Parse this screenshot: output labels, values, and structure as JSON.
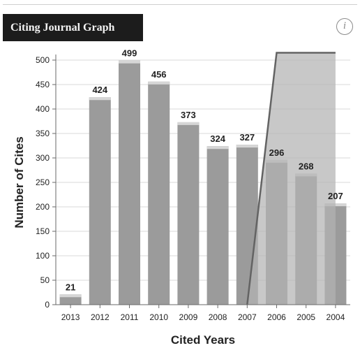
{
  "widget": {
    "title": "Citing Journal Graph",
    "info_label": "i",
    "info_icon": "info-icon"
  },
  "chart_data": {
    "type": "bar",
    "xlabel": "Cited Years",
    "ylabel": "Number of Cites",
    "categories": [
      "2013",
      "2012",
      "2011",
      "2010",
      "2009",
      "2008",
      "2007",
      "2006",
      "2005",
      "2004"
    ],
    "values": [
      21,
      424,
      499,
      456,
      373,
      324,
      327,
      296,
      268,
      207
    ],
    "ylim": [
      0,
      500
    ],
    "yticks": [
      0,
      50,
      100,
      150,
      200,
      250,
      300,
      350,
      400,
      450,
      500
    ],
    "grid": true,
    "cumulative_overlay": {
      "type": "area",
      "start_category": "2007",
      "rise_end_category": "2006",
      "end_category": "2004",
      "top_value": 515
    },
    "colors": {
      "bar": "#9b9b9b",
      "bar_cap": "#d6d6d6",
      "overlay": "#b3b3b3",
      "overlay_edge": "#636363",
      "grid": "#d9d9d9",
      "axis": "#6a6a6a",
      "label": "#222222"
    }
  }
}
